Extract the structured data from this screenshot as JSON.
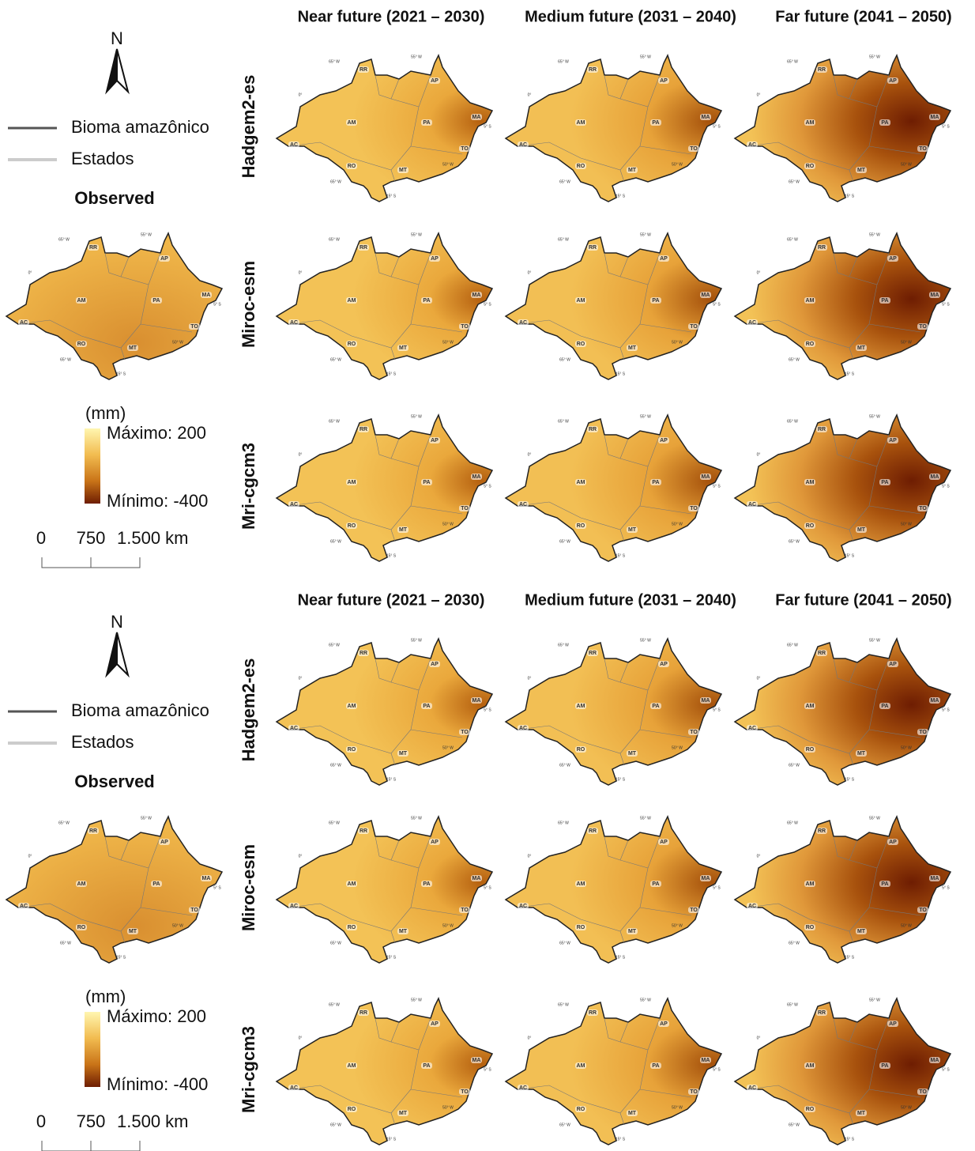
{
  "panels": [
    {
      "column_titles": [
        "Near future (2021 – 2030)",
        "Medium future (2031 – 2040)",
        "Far future (2041 – 2050)"
      ],
      "row_labels": [
        "Hadgem2-es",
        "Miroc-esm",
        "Mri-cgcm3"
      ],
      "legend": {
        "north": "N",
        "lines": [
          "Bioma amazônico",
          "Estados"
        ],
        "observed_title": "Observed",
        "unit": "(mm)",
        "max": "Máximo: 200",
        "min": "Mínimo: -400",
        "scale": [
          "0",
          "750",
          "1.500 km"
        ]
      }
    },
    {
      "column_titles": [
        "Near future (2021 – 2030)",
        "Medium future (2031 – 2040)",
        "Far future (2041 – 2050)"
      ],
      "row_labels": [
        "Hadgem2-es",
        "Miroc-esm",
        "Mri-cgcm3"
      ],
      "legend": {
        "north": "N",
        "lines": [
          "Bioma amazônico",
          "Estados"
        ],
        "observed_title": "Observed",
        "unit": "(mm)",
        "max": "Máximo: 200",
        "min": "Mínimo: -400",
        "scale": [
          "0",
          "750",
          "1.500 km"
        ]
      }
    }
  ],
  "map_labels": {
    "states": [
      "RR",
      "AP",
      "MA",
      "AM",
      "PA",
      "TO",
      "AC",
      "RO",
      "MT"
    ],
    "coords": [
      "65° W",
      "55° W",
      "0°",
      "5° S",
      "50° W",
      "15° S",
      "65° W"
    ]
  }
}
